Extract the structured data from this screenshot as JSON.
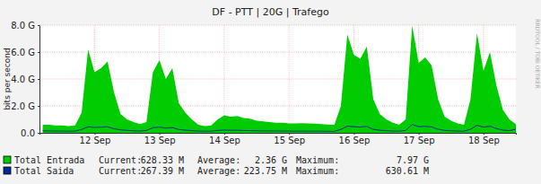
{
  "chart_data": {
    "type": "area",
    "title": "DF - PTT | 20G | Trafego",
    "y_label": "bits per second",
    "watermark": "RRDTOOL / TOBI OETIKER",
    "grid": true,
    "x": [
      -0.3,
      -0.2,
      -0.1,
      0.0,
      0.1,
      0.2,
      0.3,
      0.4,
      0.5,
      0.6,
      0.7,
      0.8,
      0.9,
      1.0,
      1.1,
      1.2,
      1.3,
      1.4,
      1.5,
      1.6,
      1.7,
      1.8,
      1.9,
      2.0,
      2.1,
      2.2,
      2.3,
      2.4,
      2.5,
      2.6,
      2.7,
      2.8,
      2.9,
      3.0,
      3.1,
      3.2,
      3.3,
      3.4,
      3.5,
      3.6,
      3.7,
      3.8,
      3.9,
      4.0,
      4.1,
      4.2,
      4.3,
      4.4,
      4.5,
      4.6,
      4.7,
      4.8,
      4.9,
      5.0,
      5.1,
      5.2,
      5.3,
      5.4,
      5.5,
      5.6,
      5.7,
      5.8,
      5.9,
      6.0,
      6.1,
      6.2,
      6.3,
      6.4,
      6.5,
      6.6,
      6.7,
      6.8,
      6.9,
      7.0
    ],
    "xlim": [
      -0.35,
      7.0
    ],
    "xticks": [
      {
        "value": 0.5,
        "label": "12 Sep"
      },
      {
        "value": 1.5,
        "label": "13 Sep"
      },
      {
        "value": 2.5,
        "label": "14 Sep"
      },
      {
        "value": 3.5,
        "label": "15 Sep"
      },
      {
        "value": 4.5,
        "label": "16 Sep"
      },
      {
        "value": 5.5,
        "label": "17 Sep"
      },
      {
        "value": 6.5,
        "label": "18 Sep"
      }
    ],
    "ylim": [
      0,
      8000000000.0
    ],
    "yticks": [
      {
        "value": 0,
        "label": "0.0"
      },
      {
        "value": 2000000000.0,
        "label": "2.0 G"
      },
      {
        "value": 4000000000.0,
        "label": "4.0 G"
      },
      {
        "value": 6000000000.0,
        "label": "6.0 G"
      },
      {
        "value": 8000000000.0,
        "label": "8.0 G"
      }
    ],
    "series": [
      {
        "name": "Total Entrada",
        "type": "area",
        "color": "#00cc00",
        "stats": [
          [
            "Current:",
            "628.33 M"
          ],
          [
            "Average:",
            "2.36 G"
          ],
          [
            "Maximum:",
            "7.97 G"
          ]
        ],
        "values": [
          600000000.0,
          600000000.0,
          550000000.0,
          550000000.0,
          500000000.0,
          550000000.0,
          1500000000.0,
          6200000000.0,
          4500000000.0,
          4800000000.0,
          5300000000.0,
          3000000000.0,
          1400000000.0,
          1000000000.0,
          800000000.0,
          650000000.0,
          800000000.0,
          4500000000.0,
          5400000000.0,
          4000000000.0,
          4800000000.0,
          2200000000.0,
          1500000000.0,
          1000000000.0,
          600000000.0,
          500000000.0,
          550000000.0,
          1000000000.0,
          1300000000.0,
          1200000000.0,
          1250000000.0,
          1100000000.0,
          1050000000.0,
          900000000.0,
          850000000.0,
          800000000.0,
          750000000.0,
          750000000.0,
          700000000.0,
          700000000.0,
          720000000.0,
          700000000.0,
          680000000.0,
          650000000.0,
          620000000.0,
          600000000.0,
          2000000000.0,
          7300000000.0,
          5800000000.0,
          5500000000.0,
          6400000000.0,
          2500000000.0,
          1400000000.0,
          1000000000.0,
          750000000.0,
          600000000.0,
          1000000000.0,
          7970000000.0,
          5200000000.0,
          5600000000.0,
          5000000000.0,
          2500000000.0,
          1200000000.0,
          900000000.0,
          700000000.0,
          600000000.0,
          2500000000.0,
          7400000000.0,
          4600000000.0,
          6000000000.0,
          3500000000.0,
          1700000000.0,
          1000000000.0,
          628330000.0
        ]
      },
      {
        "name": "Total Saida",
        "type": "line",
        "color": "#002a97",
        "stats": [
          [
            "Current:",
            "267.39 M"
          ],
          [
            "Average:",
            "223.75 M"
          ],
          [
            "Maximum:",
            "630.61 M"
          ]
        ],
        "values": [
          150000000.0,
          140000000.0,
          130000000.0,
          130000000.0,
          120000000.0,
          130000000.0,
          250000000.0,
          450000000.0,
          400000000.0,
          420000000.0,
          450000000.0,
          300000000.0,
          220000000.0,
          180000000.0,
          150000000.0,
          130000000.0,
          180000000.0,
          380000000.0,
          430000000.0,
          350000000.0,
          390000000.0,
          250000000.0,
          200000000.0,
          160000000.0,
          130000000.0,
          120000000.0,
          120000000.0,
          180000000.0,
          200000000.0,
          190000000.0,
          190000000.0,
          170000000.0,
          160000000.0,
          150000000.0,
          140000000.0,
          140000000.0,
          130000000.0,
          130000000.0,
          130000000.0,
          120000000.0,
          130000000.0,
          120000000.0,
          120000000.0,
          120000000.0,
          110000000.0,
          110000000.0,
          250000000.0,
          500000000.0,
          450000000.0,
          430000000.0,
          480000000.0,
          260000000.0,
          190000000.0,
          160000000.0,
          130000000.0,
          120000000.0,
          180000000.0,
          630610000.0,
          460000000.0,
          480000000.0,
          440000000.0,
          260000000.0,
          180000000.0,
          150000000.0,
          130000000.0,
          120000000.0,
          260000000.0,
          560000000.0,
          420000000.0,
          490000000.0,
          320000000.0,
          200000000.0,
          160000000.0,
          267390000.0
        ]
      }
    ]
  }
}
